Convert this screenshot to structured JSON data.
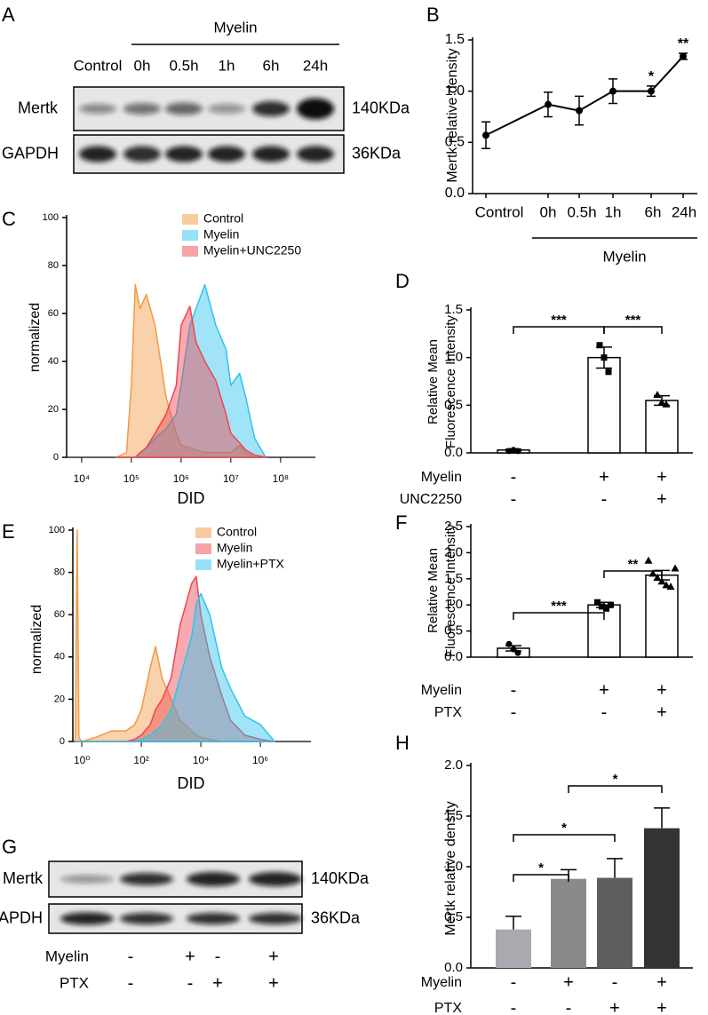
{
  "blots": [
    {
      "panel": "A",
      "group": "Myelin",
      "lanes": [
        "Control",
        "0h",
        "0.5h",
        "1h",
        "6h",
        "24h"
      ],
      "rows": [
        {
          "label": "Mertk",
          "size": "140KDa"
        },
        {
          "label": "GAPDH",
          "size": "36KDa"
        }
      ]
    },
    {
      "panel": "G",
      "rows": [
        {
          "label": "Mertk",
          "size": "140KDa"
        },
        {
          "label": "GAPDH",
          "size": "36KDa"
        }
      ],
      "conditions": [
        {
          "name": "Myelin",
          "signs": [
            "-",
            "+",
            "-",
            "+"
          ]
        },
        {
          "name": "PTX",
          "signs": [
            "-",
            "-",
            "+",
            "+"
          ]
        }
      ]
    }
  ],
  "chart_data": [
    {
      "panel": "B",
      "type": "line",
      "ylabel": "Mertk relative density",
      "color": "#000000",
      "categories": [
        "Control",
        "0h",
        "0.5h",
        "1h",
        "6h",
        "24h"
      ],
      "values": [
        0.57,
        0.87,
        0.81,
        1.0,
        1.0,
        1.34
      ],
      "errors": [
        0.13,
        0.12,
        0.14,
        0.12,
        0.05,
        0.03
      ],
      "annotations": [
        {
          "label": "*",
          "index": 4
        },
        {
          "label": "**",
          "index": 5
        }
      ],
      "group": {
        "label": "Myelin",
        "from": 1,
        "to": 5
      },
      "ylim": [
        0,
        1.5
      ],
      "yticks": [
        {
          "value": 0,
          "label": "0.0"
        },
        0.5,
        {
          "value": 1,
          "label": "1.0"
        },
        1.5
      ]
    },
    {
      "panel": "C",
      "type": "area",
      "xscale": "log",
      "xlabel": "DID",
      "ylabel": "normalized",
      "x": [
        50000,
        80000,
        100000,
        120000,
        150000,
        200000,
        300000,
        500000,
        800000,
        1000000,
        1500000,
        2000000,
        3000000,
        5000000,
        8000000,
        10000000,
        15000000,
        20000000,
        30000000,
        50000000
      ],
      "series": [
        {
          "name": "Control",
          "color": "#f29a45",
          "values": [
            0,
            2,
            30,
            72,
            62,
            68,
            55,
            25,
            10,
            5,
            4,
            3,
            2,
            2,
            2,
            2,
            5,
            2,
            0,
            0
          ]
        },
        {
          "name": "Myelin",
          "color": "#2ec3ee",
          "values": [
            0,
            0,
            0,
            0,
            2,
            4,
            8,
            12,
            18,
            30,
            55,
            62,
            72,
            55,
            45,
            30,
            35,
            25,
            8,
            0
          ]
        },
        {
          "name": "Myelin+UNC2250",
          "color": "#ee4550",
          "values": [
            0,
            0,
            0,
            0,
            2,
            4,
            10,
            18,
            30,
            55,
            63,
            48,
            40,
            32,
            18,
            10,
            6,
            3,
            1,
            0
          ]
        }
      ],
      "xlim": [
        5000,
        500000000
      ],
      "xticks": [
        {
          "value": 10000,
          "label": "10⁴"
        },
        {
          "value": 100000,
          "label": "10⁵"
        },
        {
          "value": 1000000,
          "label": "10⁶"
        },
        {
          "value": 10000000,
          "label": "10⁷"
        },
        {
          "value": 100000000,
          "label": "10⁸"
        }
      ],
      "ylim": [
        0,
        100
      ],
      "yticks": [
        0,
        20,
        40,
        60,
        80,
        100
      ]
    },
    {
      "panel": "D",
      "type": "bar",
      "ylabel": [
        "Relative Mean",
        "Fluorescence Intensity"
      ],
      "values": [
        0.03,
        1.0,
        0.55
      ],
      "errors": [
        0.01,
        0.11,
        0.05
      ],
      "points": [
        [
          0.02,
          0.03,
          0.02
        ],
        [
          1.13,
          1.0,
          0.85
        ],
        [
          0.61,
          0.53,
          0.51
        ]
      ],
      "markers": [
        "circle",
        "square",
        "triangle"
      ],
      "color": "#ffffff",
      "edgecolor": "#000000",
      "errorbar": "both",
      "conditions": [
        {
          "name": "Myelin",
          "signs": [
            "-",
            "+",
            "+"
          ]
        },
        {
          "name": "UNC2250",
          "signs": [
            "-",
            "-",
            "+"
          ]
        }
      ],
      "significance": [
        {
          "label": "***",
          "pair": [
            0,
            1
          ]
        },
        {
          "label": "***",
          "pair": [
            1,
            2
          ]
        }
      ],
      "ylim": [
        0,
        1.5
      ],
      "yticks": [
        {
          "value": 0,
          "label": "0.0"
        },
        0.5,
        {
          "value": 1,
          "label": "1.0"
        },
        1.5
      ]
    },
    {
      "panel": "E",
      "type": "area",
      "xscale": "log",
      "xlabel": "DID",
      "ylabel": "normalized",
      "x": [
        0.6,
        0.7,
        0.8,
        1,
        3,
        10,
        30,
        60,
        100,
        200,
        300,
        500,
        1000,
        2000,
        5000,
        7000,
        10000,
        20000,
        50000,
        100000,
        300000,
        1000000,
        3000000
      ],
      "series": [
        {
          "name": "Control",
          "color": "#f29a45",
          "values": [
            0,
            100,
            2,
            0,
            2,
            5,
            5,
            8,
            15,
            35,
            45,
            30,
            20,
            10,
            5,
            3,
            2,
            1,
            0,
            0,
            0,
            0,
            0
          ]
        },
        {
          "name": "Myelin",
          "color": "#ee4550",
          "values": [
            0,
            0,
            0,
            0,
            0,
            0,
            0,
            1,
            3,
            8,
            15,
            20,
            30,
            55,
            75,
            78,
            60,
            40,
            22,
            10,
            3,
            1,
            0
          ]
        },
        {
          "name": "Myelin+PTX",
          "color": "#2ec3ee",
          "values": [
            0,
            0,
            0,
            0,
            0,
            0,
            0,
            0,
            1,
            3,
            5,
            8,
            15,
            30,
            50,
            65,
            70,
            60,
            35,
            25,
            12,
            8,
            0
          ]
        }
      ],
      "xlim": [
        0.5,
        50000000
      ],
      "xticks": [
        {
          "value": 1,
          "label": "10⁰"
        },
        {
          "value": 100,
          "label": "10²"
        },
        {
          "value": 10000,
          "label": "10⁴"
        },
        {
          "value": 1000000,
          "label": "10⁶"
        }
      ],
      "ylim": [
        0,
        100
      ],
      "yticks": [
        0,
        20,
        40,
        60,
        80,
        100
      ]
    },
    {
      "panel": "F",
      "type": "bar",
      "ylabel": [
        "Relative Mean",
        "Fluorescence Intensity"
      ],
      "values": [
        0.17,
        1.0,
        1.57
      ],
      "errors": [
        0.05,
        0.05,
        0.09
      ],
      "points": [
        [
          0.25,
          0.15,
          0.08
        ],
        [
          1.05,
          0.97,
          0.93,
          1.0
        ],
        [
          1.85,
          1.6,
          1.52,
          1.45,
          1.38,
          1.35,
          1.7
        ]
      ],
      "markers": [
        "circle",
        "square",
        "triangle"
      ],
      "color": "#ffffff",
      "edgecolor": "#000000",
      "errorbar": "both",
      "conditions": [
        {
          "name": "Myelin",
          "signs": [
            "-",
            "+",
            "+"
          ]
        },
        {
          "name": "PTX",
          "signs": [
            "-",
            "-",
            "+"
          ]
        }
      ],
      "significance": [
        {
          "label": "***",
          "pair": [
            0,
            1
          ]
        },
        {
          "label": "**",
          "pair": [
            1,
            2
          ]
        }
      ],
      "ylim": [
        0,
        2.5
      ],
      "yticks": [
        {
          "value": 0,
          "label": "0.0"
        },
        0.5,
        {
          "value": 1,
          "label": "1.0"
        },
        1.5,
        {
          "value": 2,
          "label": "2.0"
        },
        2.5
      ]
    },
    {
      "panel": "H",
      "type": "bar",
      "ylabel": "Mertk relative density",
      "values": [
        0.38,
        0.88,
        0.89,
        1.38
      ],
      "errors": [
        0.13,
        0.09,
        0.19,
        0.2
      ],
      "colors": [
        "#a9a9b0",
        "#8a8a8a",
        "#5e5e5e",
        "#333333"
      ],
      "errorbar": "up",
      "conditions": [
        {
          "name": "Myelin",
          "signs": [
            "-",
            "+",
            "-",
            "+"
          ]
        },
        {
          "name": "PTX",
          "signs": [
            "-",
            "-",
            "+",
            "+"
          ]
        }
      ],
      "significance": [
        {
          "label": "*",
          "pair": [
            0,
            1
          ]
        },
        {
          "label": "*",
          "pair": [
            0,
            2
          ]
        },
        {
          "label": "*",
          "pair": [
            1,
            3
          ]
        }
      ],
      "ylim": [
        0,
        2
      ],
      "yticks": [
        {
          "value": 0,
          "label": "0.0"
        },
        0.5,
        {
          "value": 1,
          "label": "1.0"
        },
        1.5,
        {
          "value": 2,
          "label": "2.0"
        }
      ]
    }
  ]
}
